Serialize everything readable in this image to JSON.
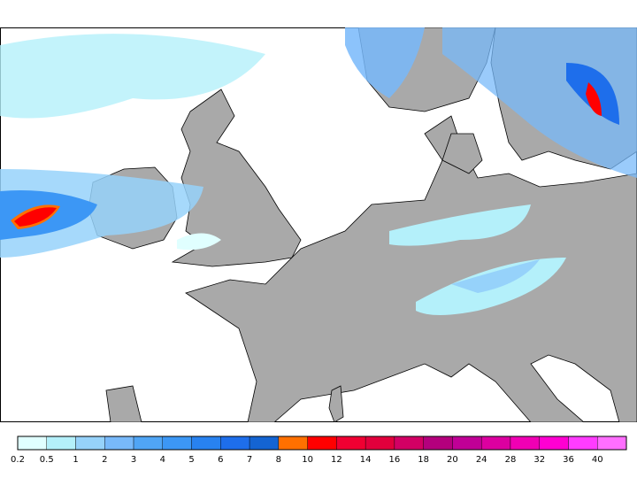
{
  "map": {
    "land_color": "#a9a9a9",
    "sea_color": "#ffffff",
    "coast_color": "#000000"
  },
  "legend": {
    "labels": [
      "0.2",
      "0.5",
      "1",
      "2",
      "3",
      "4",
      "5",
      "6",
      "7",
      "8",
      "10",
      "12",
      "14",
      "16",
      "18",
      "20",
      "24",
      "28",
      "32",
      "36",
      "40"
    ],
    "colors": [
      "#e0ffff",
      "#b4f0fa",
      "#96d2fa",
      "#78b9fa",
      "#50a5f5",
      "#3c97f5",
      "#2882f0",
      "#1e6eeb",
      "#1464d2",
      "#ff7000",
      "#ff0000",
      "#f00032",
      "#e1003c",
      "#d20064",
      "#b4007d",
      "#c00096",
      "#dc00a0",
      "#f000b4",
      "#ff00d2",
      "#ff3cff",
      "#ff6eff"
    ]
  }
}
